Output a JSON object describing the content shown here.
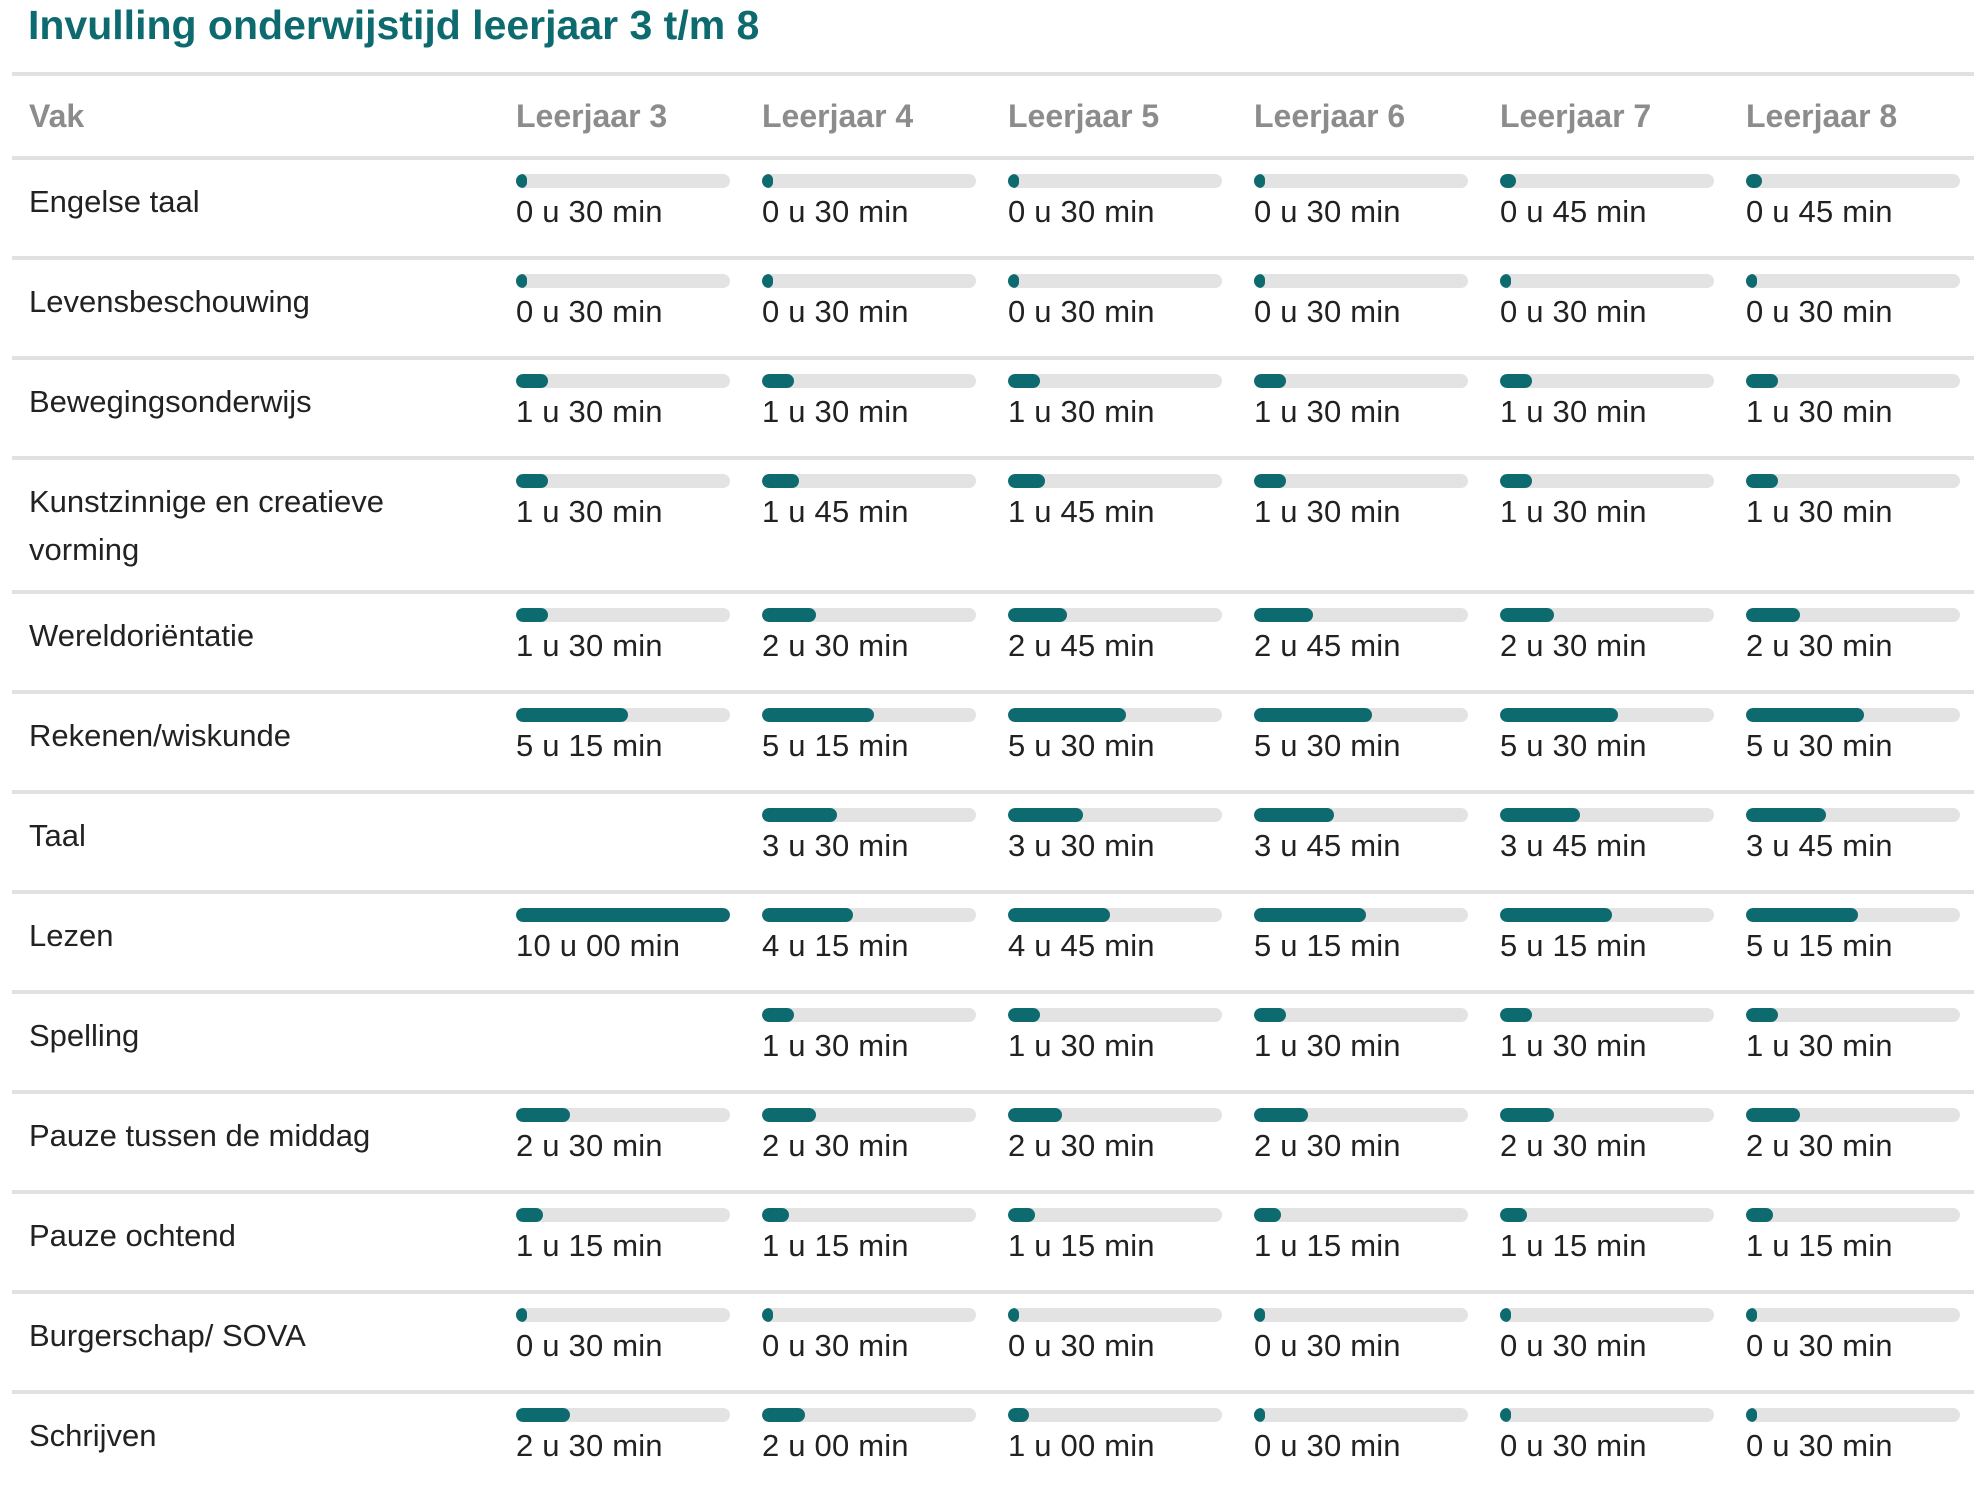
{
  "title": "Invulling onderwijstijd leerjaar 3 t/m 8",
  "header": {
    "subject": "Vak",
    "grades": [
      "Leerjaar 3",
      "Leerjaar 4",
      "Leerjaar 5",
      "Leerjaar 6",
      "Leerjaar 7",
      "Leerjaar 8"
    ]
  },
  "colors": {
    "accent": "#0d6b70",
    "track": "#e3e3e3",
    "rule": "#e1e1e1",
    "header_text": "#8c8c8c"
  },
  "chart_data": {
    "type": "table",
    "title": "Invulling onderwijstijd leerjaar 3 t/m 8",
    "columns": [
      "Vak",
      "Leerjaar 3",
      "Leerjaar 4",
      "Leerjaar 5",
      "Leerjaar 6",
      "Leerjaar 7",
      "Leerjaar 8"
    ],
    "bar_max_minutes": 600,
    "rows": [
      {
        "subject": "Engelse taal",
        "values": [
          {
            "label": "0 u 30 min",
            "minutes": 30
          },
          {
            "label": "0 u 30 min",
            "minutes": 30
          },
          {
            "label": "0 u 30 min",
            "minutes": 30
          },
          {
            "label": "0 u 30 min",
            "minutes": 30
          },
          {
            "label": "0 u 45 min",
            "minutes": 45
          },
          {
            "label": "0 u 45 min",
            "minutes": 45
          }
        ]
      },
      {
        "subject": "Levensbeschouwing",
        "values": [
          {
            "label": "0 u 30 min",
            "minutes": 30
          },
          {
            "label": "0 u 30 min",
            "minutes": 30
          },
          {
            "label": "0 u 30 min",
            "minutes": 30
          },
          {
            "label": "0 u 30 min",
            "minutes": 30
          },
          {
            "label": "0 u 30 min",
            "minutes": 30
          },
          {
            "label": "0 u 30 min",
            "minutes": 30
          }
        ]
      },
      {
        "subject": "Bewegingsonderwijs",
        "values": [
          {
            "label": "1 u 30 min",
            "minutes": 90
          },
          {
            "label": "1 u 30 min",
            "minutes": 90
          },
          {
            "label": "1 u 30 min",
            "minutes": 90
          },
          {
            "label": "1 u 30 min",
            "minutes": 90
          },
          {
            "label": "1 u 30 min",
            "minutes": 90
          },
          {
            "label": "1 u 30 min",
            "minutes": 90
          }
        ]
      },
      {
        "subject": "Kunstzinnige en creatieve vorming",
        "values": [
          {
            "label": "1 u 30 min",
            "minutes": 90
          },
          {
            "label": "1 u 45 min",
            "minutes": 105
          },
          {
            "label": "1 u 45 min",
            "minutes": 105
          },
          {
            "label": "1 u 30 min",
            "minutes": 90
          },
          {
            "label": "1 u 30 min",
            "minutes": 90
          },
          {
            "label": "1 u 30 min",
            "minutes": 90
          }
        ]
      },
      {
        "subject": "Wereldoriëntatie",
        "values": [
          {
            "label": "1 u 30 min",
            "minutes": 90
          },
          {
            "label": "2 u 30 min",
            "minutes": 150
          },
          {
            "label": "2 u 45 min",
            "minutes": 165
          },
          {
            "label": "2 u 45 min",
            "minutes": 165
          },
          {
            "label": "2 u 30 min",
            "minutes": 150
          },
          {
            "label": "2 u 30 min",
            "minutes": 150
          }
        ]
      },
      {
        "subject": "Rekenen/wiskunde",
        "values": [
          {
            "label": "5 u 15 min",
            "minutes": 315
          },
          {
            "label": "5 u 15 min",
            "minutes": 315
          },
          {
            "label": "5 u 30 min",
            "minutes": 330
          },
          {
            "label": "5 u 30 min",
            "minutes": 330
          },
          {
            "label": "5 u 30 min",
            "minutes": 330
          },
          {
            "label": "5 u 30 min",
            "minutes": 330
          }
        ]
      },
      {
        "subject": "Taal",
        "values": [
          null,
          {
            "label": "3 u 30 min",
            "minutes": 210
          },
          {
            "label": "3 u 30 min",
            "minutes": 210
          },
          {
            "label": "3 u 45 min",
            "minutes": 225
          },
          {
            "label": "3 u 45 min",
            "minutes": 225
          },
          {
            "label": "3 u 45 min",
            "minutes": 225
          }
        ]
      },
      {
        "subject": "Lezen",
        "values": [
          {
            "label": "10 u 00 min",
            "minutes": 600
          },
          {
            "label": "4 u 15 min",
            "minutes": 255
          },
          {
            "label": "4 u 45 min",
            "minutes": 285
          },
          {
            "label": "5 u 15 min",
            "minutes": 315
          },
          {
            "label": "5 u 15 min",
            "minutes": 315
          },
          {
            "label": "5 u 15 min",
            "minutes": 315
          }
        ]
      },
      {
        "subject": "Spelling",
        "values": [
          null,
          {
            "label": "1 u 30 min",
            "minutes": 90
          },
          {
            "label": "1 u 30 min",
            "minutes": 90
          },
          {
            "label": "1 u 30 min",
            "minutes": 90
          },
          {
            "label": "1 u 30 min",
            "minutes": 90
          },
          {
            "label": "1 u 30 min",
            "minutes": 90
          }
        ]
      },
      {
        "subject": "Pauze tussen de middag",
        "values": [
          {
            "label": "2 u 30 min",
            "minutes": 150
          },
          {
            "label": "2 u 30 min",
            "minutes": 150
          },
          {
            "label": "2 u 30 min",
            "minutes": 150
          },
          {
            "label": "2 u 30 min",
            "minutes": 150
          },
          {
            "label": "2 u 30 min",
            "minutes": 150
          },
          {
            "label": "2 u 30 min",
            "minutes": 150
          }
        ]
      },
      {
        "subject": "Pauze ochtend",
        "values": [
          {
            "label": "1 u 15 min",
            "minutes": 75
          },
          {
            "label": "1 u 15 min",
            "minutes": 75
          },
          {
            "label": "1 u 15 min",
            "minutes": 75
          },
          {
            "label": "1 u 15 min",
            "minutes": 75
          },
          {
            "label": "1 u 15 min",
            "minutes": 75
          },
          {
            "label": "1 u 15 min",
            "minutes": 75
          }
        ]
      },
      {
        "subject": "Burgerschap/ SOVA",
        "values": [
          {
            "label": "0 u 30 min",
            "minutes": 30
          },
          {
            "label": "0 u 30 min",
            "minutes": 30
          },
          {
            "label": "0 u 30 min",
            "minutes": 30
          },
          {
            "label": "0 u 30 min",
            "minutes": 30
          },
          {
            "label": "0 u 30 min",
            "minutes": 30
          },
          {
            "label": "0 u 30 min",
            "minutes": 30
          }
        ]
      },
      {
        "subject": "Schrijven",
        "values": [
          {
            "label": "2 u 30 min",
            "minutes": 150
          },
          {
            "label": "2 u 00 min",
            "minutes": 120
          },
          {
            "label": "1 u 00 min",
            "minutes": 60
          },
          {
            "label": "0 u 30 min",
            "minutes": 30
          },
          {
            "label": "0 u 30 min",
            "minutes": 30
          },
          {
            "label": "0 u 30 min",
            "minutes": 30
          }
        ]
      }
    ]
  }
}
